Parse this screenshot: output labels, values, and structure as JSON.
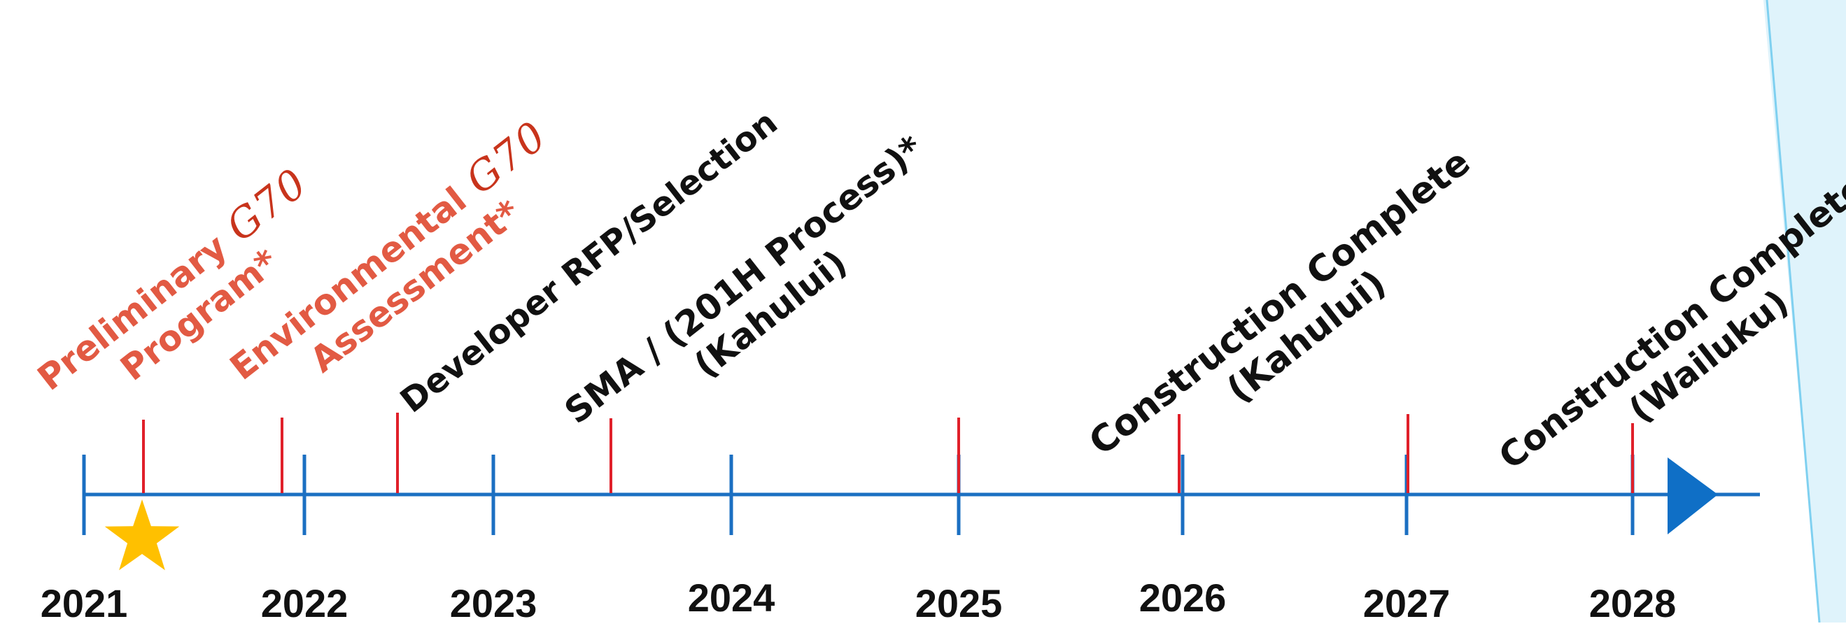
{
  "timeline": {
    "years": [
      "2021",
      "2022",
      "2023",
      "2024",
      "2025",
      "2026",
      "2027",
      "2028"
    ],
    "colors": {
      "axis": "#1b6fc2",
      "tick": "#1b6fc2",
      "milestone_tick": "#e0202a",
      "highlight_text": "#e25a43",
      "normal_text": "#111111",
      "star": "#ffc000",
      "arrow": "#0f6fc6",
      "logo": "#c8341c",
      "accent_stripe": "#7fd0f0"
    },
    "current_marker": {
      "icon": "star-icon",
      "color": "#ffc000"
    },
    "milestones": [
      {
        "lines": [
          "Preliminary",
          "Program*"
        ],
        "logo": "G70",
        "highlight": true
      },
      {
        "lines": [
          "Environmental",
          "Assessment*"
        ],
        "logo": "G70",
        "highlight": true
      },
      {
        "lines": [
          "Developer RFP/Selection"
        ],
        "highlight": false
      },
      {
        "lines": [
          "SMA / (201H Process)*",
          "(Kahului)"
        ],
        "highlight": false
      },
      {
        "lines": [
          "Construction Complete",
          "(Kahului)"
        ],
        "highlight": false
      },
      {
        "lines": [
          "Construction Complete",
          "(Wailuku)"
        ],
        "highlight": false
      }
    ]
  }
}
